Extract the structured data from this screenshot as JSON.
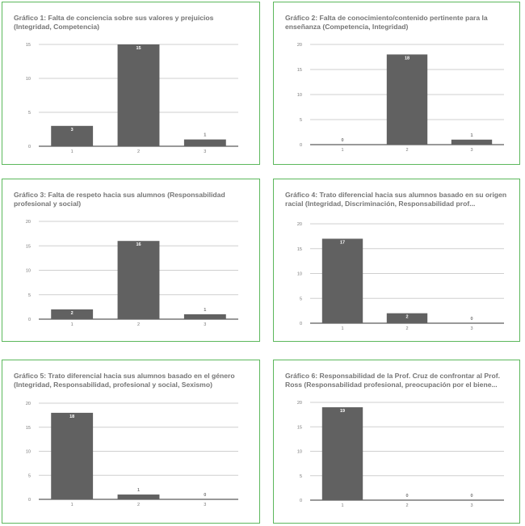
{
  "colors": {
    "border": "#5cb85c",
    "bar": "#616161",
    "title": "#757575",
    "grid": "#cfcfcf",
    "axis": "#333333",
    "tick": "#777777",
    "label_inside": "#ffffff",
    "label_outside": "#777777"
  },
  "chart_data": [
    {
      "type": "bar",
      "title": "Gráfico 1: Falta de conciencia sobre sus valores y prejuicios (Integridad, Competencia)",
      "categories": [
        "1",
        "2",
        "3"
      ],
      "values": [
        3,
        15,
        1
      ],
      "yticks": [
        0,
        5,
        10,
        15
      ],
      "ylim": [
        0,
        15
      ],
      "grid": true
    },
    {
      "type": "bar",
      "title": "Gráfico 2: Falta de conocimiento/contenido pertinente para la enseñanza (Competencia, Integridad)",
      "categories": [
        "1",
        "2",
        "3"
      ],
      "values": [
        0,
        18,
        1
      ],
      "yticks": [
        0,
        5,
        10,
        15,
        20
      ],
      "ylim": [
        0,
        20
      ],
      "grid": true
    },
    {
      "type": "bar",
      "title": "Gráfico 3: Falta de respeto hacia sus alumnos (Responsabilidad profesional y social)",
      "categories": [
        "1",
        "2",
        "3"
      ],
      "values": [
        2,
        16,
        1
      ],
      "yticks": [
        0,
        5,
        10,
        15,
        20
      ],
      "ylim": [
        0,
        20
      ],
      "grid": true
    },
    {
      "type": "bar",
      "title": "Gráfico 4: Trato diferencial hacia sus alumnos basado en su origen racial (Integridad, Discriminación, Responsabilidad prof...",
      "categories": [
        "1",
        "2",
        "3"
      ],
      "values": [
        17,
        2,
        0
      ],
      "yticks": [
        0,
        5,
        10,
        15,
        20
      ],
      "ylim": [
        0,
        20
      ],
      "grid": true
    },
    {
      "type": "bar",
      "title": "Gráfico 5: Trato diferencial hacia sus alumnos basado en el género (Integridad, Responsabilidad, profesional y social, Sexismo)",
      "categories": [
        "1",
        "2",
        "3"
      ],
      "values": [
        18,
        1,
        0
      ],
      "yticks": [
        0,
        5,
        10,
        15,
        20
      ],
      "ylim": [
        0,
        20
      ],
      "grid": true
    },
    {
      "type": "bar",
      "title": "Gráfico 6: Responsabilidad de la Prof. Cruz de confrontar al Prof. Ross (Responsabilidad profesional, preocupación por el biene...",
      "categories": [
        "1",
        "2",
        "3"
      ],
      "values": [
        19,
        0,
        0
      ],
      "yticks": [
        0,
        5,
        10,
        15,
        20
      ],
      "ylim": [
        0,
        20
      ],
      "grid": true
    }
  ]
}
